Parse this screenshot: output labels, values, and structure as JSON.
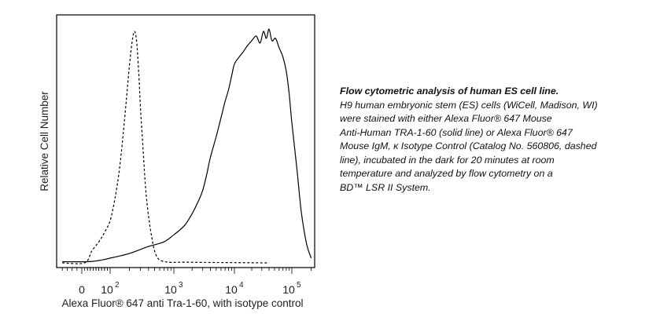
{
  "chart_data": {
    "type": "line",
    "title": "",
    "xlabel": "Alexa Fluor® 647 anti Tra-1-60, with isotype control",
    "ylabel": "Relative Cell Number",
    "x_scale": "biexponential",
    "xlim": [
      -50,
      220000
    ],
    "ylim": [
      0,
      100
    ],
    "x_ticks": [
      {
        "value": 0,
        "label": "0",
        "exp": ""
      },
      {
        "value": 100,
        "label": "10",
        "exp": "2"
      },
      {
        "value": 1000,
        "label": "10",
        "exp": "3"
      },
      {
        "value": 10000,
        "label": "10",
        "exp": "4"
      },
      {
        "value": 100000,
        "label": "10",
        "exp": "5"
      }
    ],
    "grid": false,
    "legend": "none",
    "series": [
      {
        "style": "dashed",
        "x": [
          -40,
          10,
          35,
          60,
          80,
          100,
          120,
          140,
          160,
          180,
          200,
          220,
          240,
          260,
          280,
          300,
          330,
          360,
          400,
          450,
          500,
          560,
          620,
          700,
          800,
          1000,
          1500,
          3000,
          10000,
          40000
        ],
        "y": [
          0,
          0,
          5,
          9,
          13,
          18,
          28,
          40,
          55,
          70,
          84,
          94,
          99,
          95,
          82,
          66,
          48,
          32,
          20,
          11,
          5,
          2,
          1,
          0.6,
          0.3,
          0.2,
          0.3,
          0.2,
          0.1,
          0
        ]
      },
      {
        "style": "solid",
        "x": [
          -40,
          20,
          60,
          100,
          200,
          400,
          700,
          1000,
          1500,
          2000,
          2600,
          3000,
          3500,
          4000,
          5000,
          6000,
          7000,
          8000,
          9000,
          10000,
          12000,
          14000,
          17000,
          20000,
          24000,
          28000,
          32000,
          36000,
          40000,
          45000,
          52000,
          60000,
          70000,
          80000,
          90000,
          100000,
          120000,
          140000,
          170000,
          200000
        ],
        "y": [
          0.5,
          0.5,
          1,
          2,
          4,
          7,
          9,
          12,
          16,
          21,
          27,
          31,
          38,
          45,
          54,
          62,
          69,
          74,
          80,
          85,
          88,
          90,
          93,
          95,
          97,
          94,
          99,
          96,
          100,
          95,
          96,
          92,
          88,
          82,
          72,
          60,
          40,
          22,
          8,
          2
        ]
      }
    ]
  },
  "caption": {
    "title": "Flow cytometric analysis of human ES cell line.",
    "lines": [
      "H9 human embryonic stem (ES) cells (WiCell, Madison, WI)",
      "were stained with either Alexa Fluor® 647 Mouse",
      "Anti-Human TRA-1-60 (solid line) or Alexa Fluor® 647",
      "Mouse IgM, κ Isotype Control (Catalog No. 560806, dashed",
      "line), incubated in the dark for 20 minutes at room",
      "temperature and analyzed by flow cytometry on a",
      "BD™ LSR II System."
    ]
  }
}
